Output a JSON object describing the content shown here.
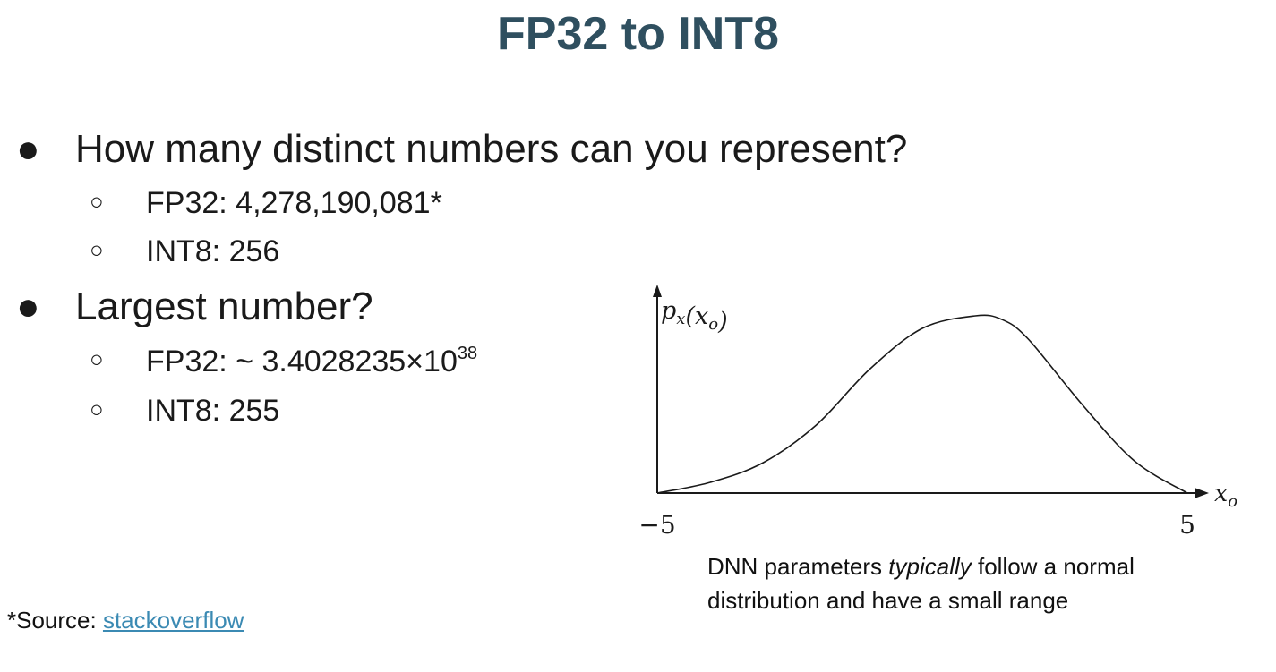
{
  "slide": {
    "title": "FP32 to INT8"
  },
  "bullets": [
    {
      "text": "How many distinct numbers can you represent?",
      "subs": [
        {
          "text": "FP32: 4,278,190,081*"
        },
        {
          "text": "INT8: 256"
        }
      ]
    },
    {
      "text": "Largest number?",
      "subs": [
        {
          "prefix": "FP32: ~ 3.4028235×10",
          "sup": "38"
        },
        {
          "text": "INT8: 255"
        }
      ]
    }
  ],
  "bullet_glyph": "●",
  "sub_bullet_glyph": "○",
  "chart_data": {
    "type": "line",
    "title": "",
    "ylabel": "p_x(x_o)",
    "xlabel": "x_o",
    "xlim": [
      -5,
      5
    ],
    "x_tick_labels": [
      "−5",
      "5"
    ],
    "series": [
      {
        "x": [
          -5,
          -4,
          -3,
          -2,
          -1,
          0,
          1,
          1.5,
          2,
          3,
          4,
          5
        ],
        "y": [
          0.0,
          0.06,
          0.17,
          0.38,
          0.69,
          0.92,
          0.99,
          0.97,
          0.86,
          0.5,
          0.18,
          0.0
        ]
      }
    ]
  },
  "caption": {
    "prefix": "DNN parameters ",
    "emphasis": "typically",
    "suffix": " follow a normal distribution and have a small range"
  },
  "source": {
    "label": "*Source: ",
    "link_text": "stackoverflow"
  },
  "colors": {
    "title": "#2f4f5f",
    "link": "#3b8ab3"
  }
}
